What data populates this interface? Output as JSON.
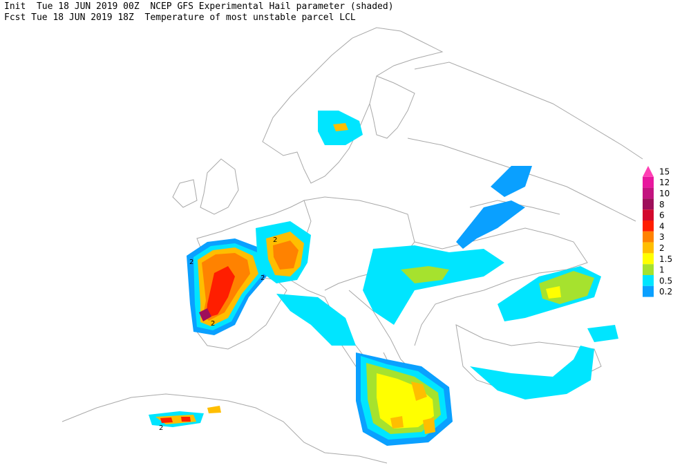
{
  "header": {
    "line1": "Init  Tue 18 JUN 2019 00Z  NCEP GFS Experimental Hail parameter (shaded)",
    "line2": "Fcst Tue 18 JUN 2019 18Z  Temperature of most unstable parcel LCL"
  },
  "legend": [
    {
      "label": 15,
      "color": "#ff3fb4"
    },
    {
      "label": 12,
      "color": "#e8179e"
    },
    {
      "label": 10,
      "color": "#c3137f"
    },
    {
      "label": 8,
      "color": "#9e0f5a"
    },
    {
      "label": 6,
      "color": "#d2092d"
    },
    {
      "label": 4,
      "color": "#ff1e00"
    },
    {
      "label": 3,
      "color": "#ff8200"
    },
    {
      "label": 2,
      "color": "#ffbe00"
    },
    {
      "label": 1.5,
      "color": "#ffff00"
    },
    {
      "label": 1,
      "color": "#a6e22e"
    },
    {
      "label": 0.5,
      "color": "#00e5ff"
    },
    {
      "label": 0.2,
      "color": "#0aa0ff"
    }
  ],
  "contour_labels": [
    2,
    2,
    2,
    2,
    2
  ]
}
